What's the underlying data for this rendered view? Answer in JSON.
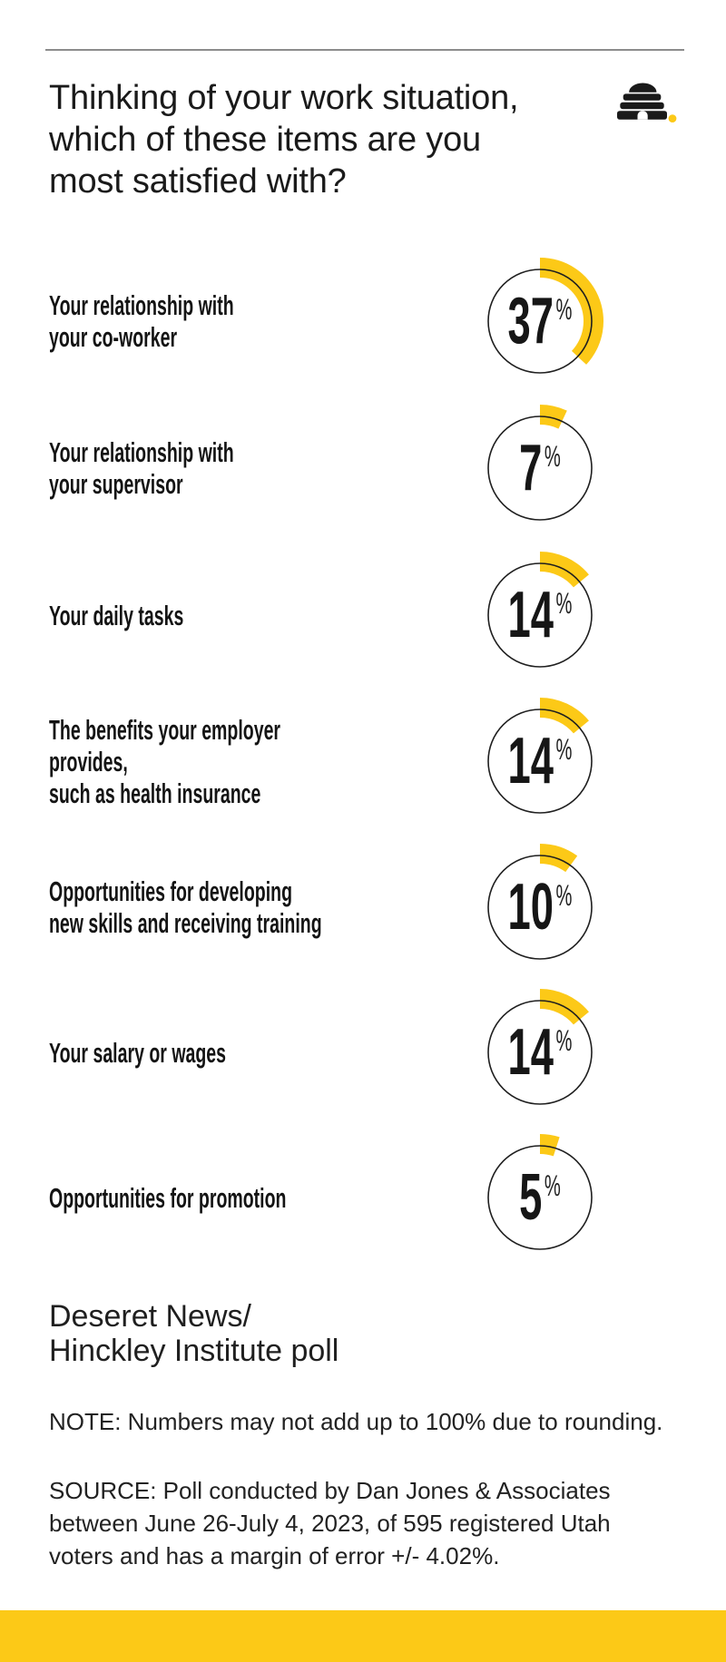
{
  "header": {
    "title": "Thinking of your work situation,\nwhich of these items are you\nmost satisfied with?"
  },
  "items": [
    {
      "label": "Your relationship with\nyour co-worker",
      "value": 37,
      "unit": "%"
    },
    {
      "label": "Your relationship with\nyour supervisor",
      "value": 7,
      "unit": "%"
    },
    {
      "label": "Your daily tasks",
      "value": 14,
      "unit": "%"
    },
    {
      "label": "The benefits your employer provides,\nsuch as health insurance",
      "value": 14,
      "unit": "%"
    },
    {
      "label": "Opportunities for developing\nnew skills and receiving training",
      "value": 10,
      "unit": "%"
    },
    {
      "label": "Your salary or wages",
      "value": 14,
      "unit": "%"
    },
    {
      "label": "Opportunities for promotion",
      "value": 5,
      "unit": "%"
    }
  ],
  "footer": {
    "attribution": "Deseret News/\nHinckley Institute poll",
    "note": "NOTE: Numbers may not add up to 100% due to rounding.",
    "source": "SOURCE: Poll conducted by Dan Jones & Associates\nbetween June 26-July 4, 2023, of 595 registered Utah\nvoters and has a margin of error +/- 4.02%."
  },
  "colors": {
    "accent_yellow": "#FCC917",
    "ink": "#1a1a1a",
    "divider_gray": "#8c8c8c"
  },
  "chart_data": {
    "type": "pie",
    "subtype": "small-multiple donut progress rings",
    "title": "Thinking of your work situation, which of these items are you most satisfied with?",
    "categories": [
      "Your relationship with your co-worker",
      "Your relationship with your supervisor",
      "Your daily tasks",
      "The benefits your employer provides, such as health insurance",
      "Opportunities for developing new skills and receiving training",
      "Your salary or wages",
      "Opportunities for promotion"
    ],
    "values": [
      37,
      7,
      14,
      14,
      10,
      14,
      5
    ],
    "unit": "%",
    "value_range": [
      0,
      100
    ],
    "arc_start": "12 o'clock, clockwise",
    "accent_color": "#FCC917",
    "attribution": "Deseret News/Hinckley Institute poll"
  }
}
